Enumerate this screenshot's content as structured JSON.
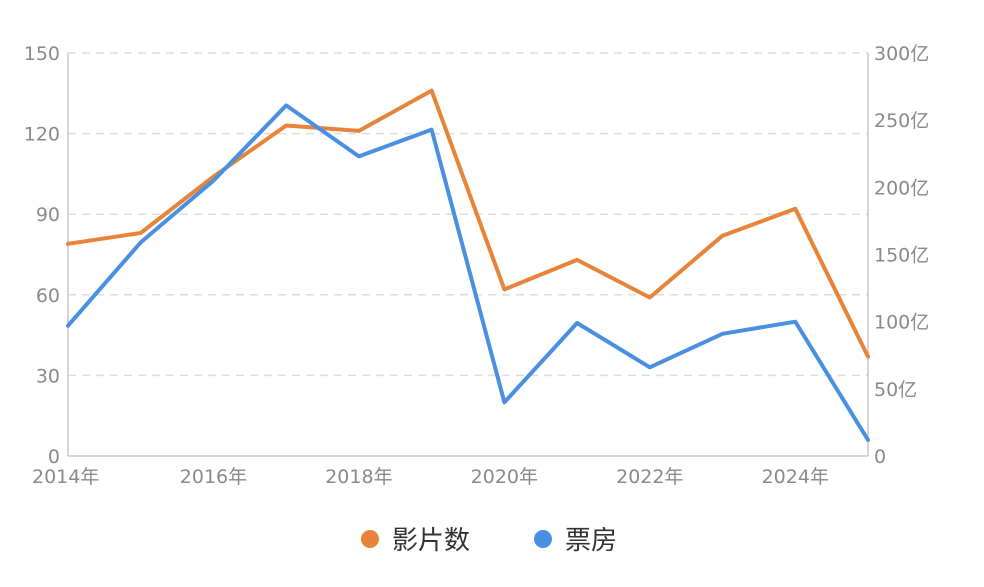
{
  "chart_data": {
    "type": "line",
    "title": "",
    "xlabel": "",
    "ylabel": "",
    "x": [
      2014,
      2015,
      2016,
      2017,
      2018,
      2019,
      2020,
      2021,
      2022,
      2023,
      2024,
      2025
    ],
    "x_tick_labels": [
      "2014年",
      "2016年",
      "2018年",
      "2020年",
      "2022年",
      "2024年"
    ],
    "x_tick_values": [
      2014,
      2016,
      2018,
      2020,
      2022,
      2024
    ],
    "y_left": {
      "min": 0,
      "max": 150,
      "ticks": [
        0,
        30,
        60,
        90,
        120,
        150
      ],
      "tick_labels": [
        "0",
        "30",
        "60",
        "90",
        "120",
        "150"
      ]
    },
    "y_right": {
      "min": 0,
      "max": 300,
      "ticks": [
        0,
        50,
        100,
        150,
        200,
        250,
        300
      ],
      "tick_labels": [
        "0",
        "50亿",
        "100亿",
        "150亿",
        "200亿",
        "250亿",
        "300亿"
      ]
    },
    "grid": true,
    "legend_position": "bottom",
    "series": [
      {
        "name": "影片数",
        "axis": "left",
        "color": "#e8833a",
        "values": [
          79,
          83,
          104,
          123,
          121,
          136,
          62,
          73,
          59,
          82,
          92,
          37
        ]
      },
      {
        "name": "票房",
        "axis": "right",
        "color": "#4a90e2",
        "values": [
          97,
          159,
          205,
          261,
          223,
          243,
          40,
          99,
          66,
          91,
          100,
          12
        ]
      }
    ]
  }
}
